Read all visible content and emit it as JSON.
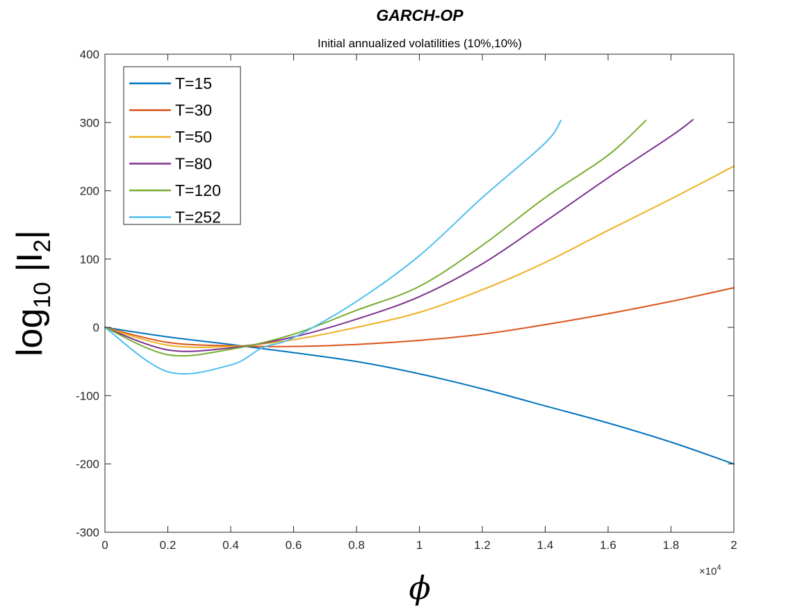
{
  "chart_data": {
    "type": "line",
    "title": "GARCH-OP",
    "subtitle": "Initial annualized volatilities (10%,10%)",
    "xlabel": "ϕ",
    "ylabel_main": "log",
    "ylabel_sub": "10",
    "ylabel_rest": " |I",
    "ylabel_sub2": "2",
    "ylabel_end": "|",
    "x_multiplier_base": "×10",
    "x_multiplier_exp": "4",
    "xlim": [
      0,
      2
    ],
    "ylim": [
      -300,
      400
    ],
    "xticks": [
      "0",
      "0.2",
      "0.4",
      "0.6",
      "0.8",
      "1",
      "1.2",
      "1.4",
      "1.6",
      "1.8",
      "2"
    ],
    "yticks": [
      "-300",
      "-200",
      "-100",
      "0",
      "100",
      "200",
      "300",
      "400"
    ],
    "legend_position": "top-left",
    "series": [
      {
        "name": "T=15",
        "color": "#0072BD",
        "x": [
          0,
          0.2,
          0.4,
          0.6,
          0.8,
          1.0,
          1.2,
          1.4,
          1.6,
          1.8,
          2.0
        ],
        "y": [
          0,
          -14,
          -25,
          -37,
          -50,
          -68,
          -90,
          -115,
          -140,
          -168,
          -200
        ]
      },
      {
        "name": "T=30",
        "color": "#D95319",
        "x": [
          0,
          0.2,
          0.4,
          0.6,
          0.8,
          1.0,
          1.2,
          1.4,
          1.6,
          1.8,
          2.0
        ],
        "y": [
          0,
          -22,
          -27,
          -28,
          -25,
          -19,
          -10,
          4,
          20,
          38,
          58
        ]
      },
      {
        "name": "T=50",
        "color": "#EDB120",
        "x": [
          0,
          0.2,
          0.4,
          0.6,
          0.8,
          1.0,
          1.2,
          1.4,
          1.6,
          1.8,
          2.0
        ],
        "y": [
          0,
          -26,
          -28,
          -18,
          0,
          22,
          55,
          95,
          142,
          188,
          236
        ]
      },
      {
        "name": "T=80",
        "color": "#7E2F8E",
        "x": [
          0,
          0.2,
          0.4,
          0.6,
          0.8,
          1.0,
          1.2,
          1.4,
          1.6,
          1.8,
          1.87
        ],
        "y": [
          0,
          -33,
          -30,
          -14,
          12,
          45,
          93,
          155,
          219,
          280,
          304
        ]
      },
      {
        "name": "T=120",
        "color": "#77AC30",
        "x": [
          0,
          0.2,
          0.4,
          0.6,
          0.8,
          1.0,
          1.2,
          1.4,
          1.6,
          1.72
        ],
        "y": [
          0,
          -40,
          -32,
          -10,
          25,
          60,
          120,
          190,
          252,
          303
        ]
      },
      {
        "name": "T=252",
        "color": "#4DBEEE",
        "x": [
          0,
          0.2,
          0.4,
          0.5,
          0.6,
          0.8,
          1.0,
          1.2,
          1.4,
          1.45
        ],
        "y": [
          0,
          -65,
          -55,
          -30,
          -15,
          38,
          105,
          190,
          270,
          303
        ]
      }
    ]
  }
}
